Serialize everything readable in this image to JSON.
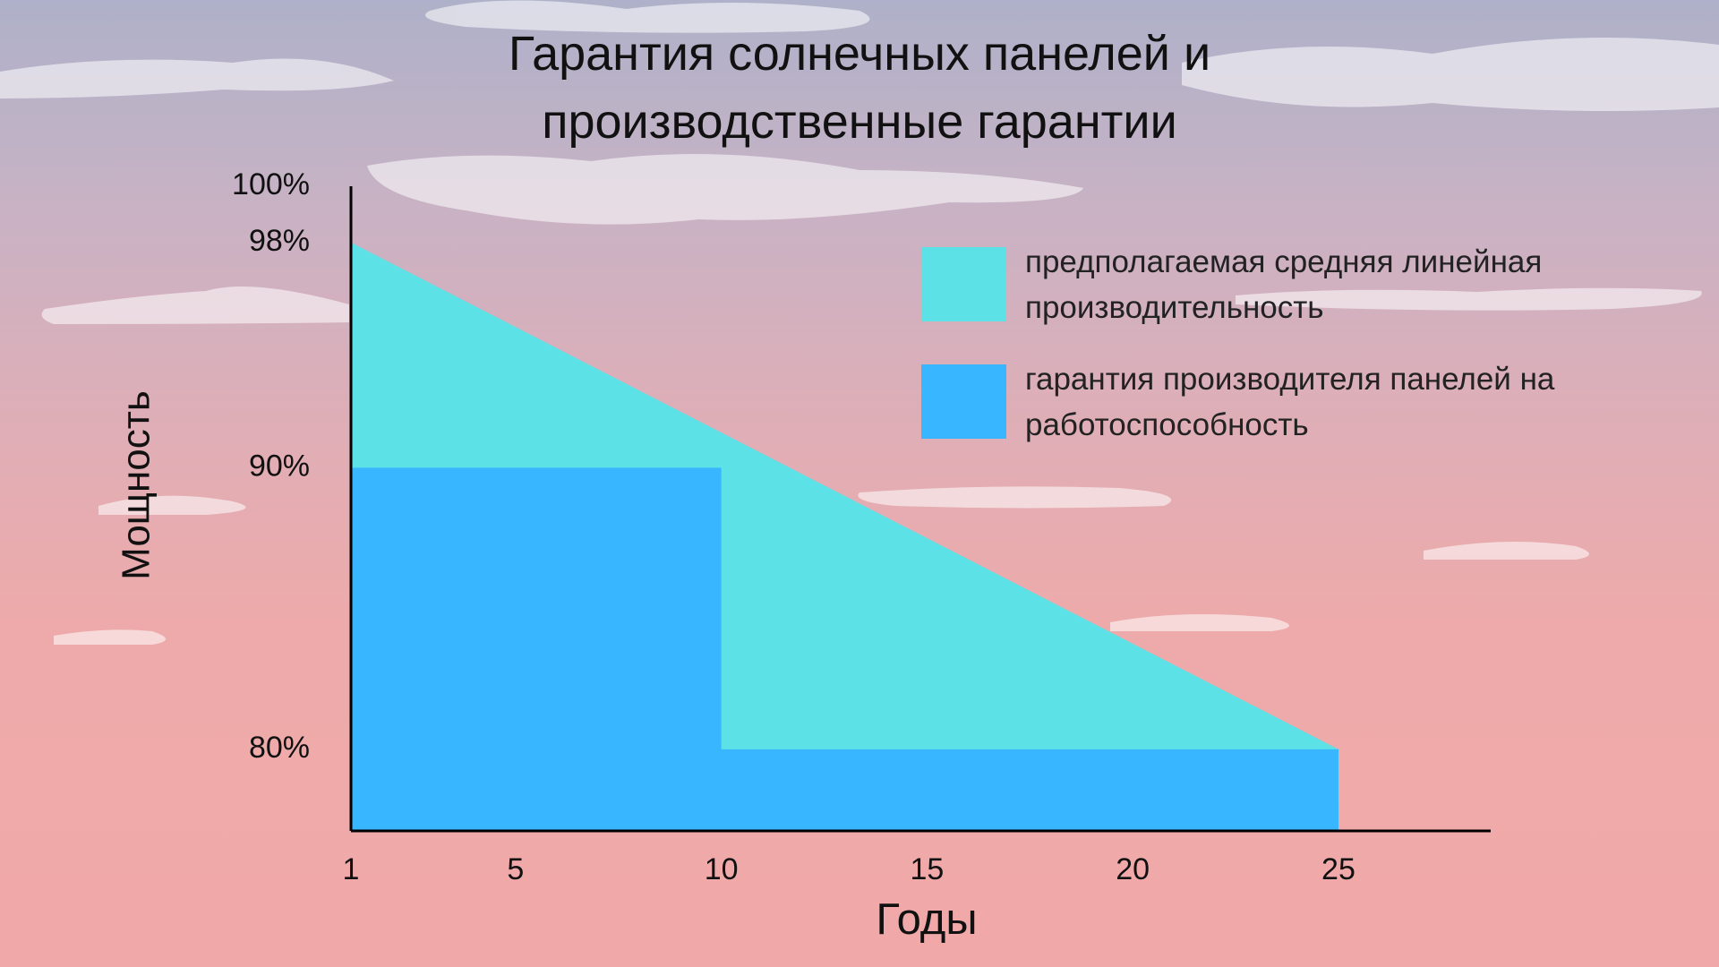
{
  "chart_data": {
    "type": "area",
    "title": "Гарантия солнечных панелей и производственные гарантии",
    "x_label": "Годы",
    "y_label": "Мощность",
    "series": [
      {
        "name": "предполагаемая средняя линейная производительность",
        "color": "#5ce1e6",
        "x": [
          1,
          25
        ],
        "values": [
          98,
          80
        ]
      },
      {
        "name": "гарантия производителя панелей на работоспособность",
        "color": "#38b6ff",
        "x": [
          1,
          10,
          10,
          25
        ],
        "values": [
          90,
          90,
          80,
          80
        ]
      }
    ],
    "xlim": [
      1,
      28.7
    ],
    "xticks": [
      1,
      5,
      10,
      15,
      20,
      25
    ],
    "ylim": [
      77.1,
      100
    ],
    "yticks": [
      {
        "value": 100,
        "label": "100%"
      },
      {
        "value": 98,
        "label": "98%"
      },
      {
        "value": 90,
        "label": "90%"
      },
      {
        "value": 80,
        "label": "80%"
      }
    ],
    "legend": "upper right",
    "grid": false
  }
}
